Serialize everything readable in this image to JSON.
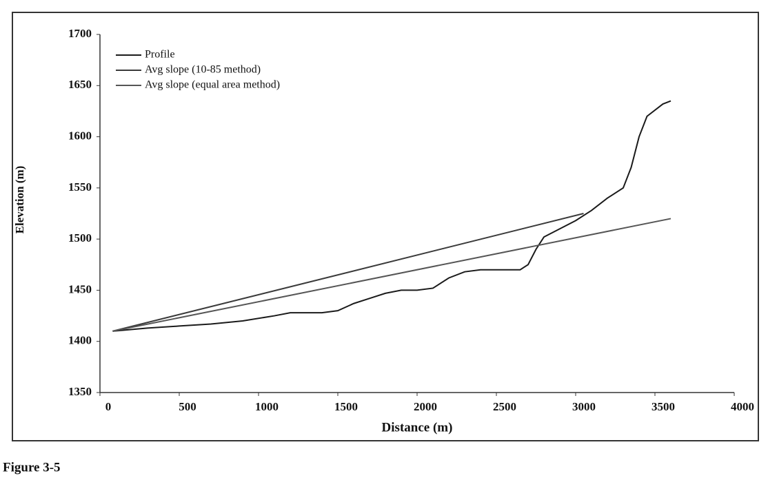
{
  "chart_data": {
    "type": "line",
    "xlabel": "Distance (m)",
    "ylabel": "Elevation (m)",
    "caption": "Figure 3-5",
    "xlim": [
      0,
      4000
    ],
    "xticks": [
      0,
      500,
      1000,
      1500,
      2000,
      2500,
      3000,
      3500,
      4000
    ],
    "ylim": [
      1350,
      1700
    ],
    "yticks": [
      1350,
      1400,
      1450,
      1500,
      1550,
      1600,
      1650,
      1700
    ],
    "legend": "upper left",
    "series": [
      {
        "name": "Profile",
        "color": "#1a1a1a",
        "x": [
          80,
          300,
          500,
          700,
          900,
          1100,
          1200,
          1400,
          1500,
          1600,
          1700,
          1800,
          1900,
          2000,
          2100,
          2200,
          2300,
          2400,
          2500,
          2650,
          2700,
          2750,
          2800,
          2900,
          3000,
          3100,
          3200,
          3300,
          3350,
          3400,
          3450,
          3550,
          3600
        ],
        "values": [
          1410,
          1413,
          1415,
          1417,
          1420,
          1425,
          1428,
          1428,
          1430,
          1437,
          1442,
          1447,
          1450,
          1450,
          1452,
          1462,
          1468,
          1470,
          1470,
          1470,
          1475,
          1490,
          1502,
          1510,
          1518,
          1528,
          1540,
          1550,
          1570,
          1600,
          1620,
          1632,
          1635
        ]
      },
      {
        "name": "Avg slope (10-85 method)",
        "color": "#3a3a3a",
        "x": [
          80,
          3050
        ],
        "values": [
          1410,
          1525
        ]
      },
      {
        "name": "Avg slope (equal area method)",
        "color": "#555555",
        "x": [
          80,
          3600
        ],
        "values": [
          1410,
          1520
        ]
      }
    ]
  }
}
